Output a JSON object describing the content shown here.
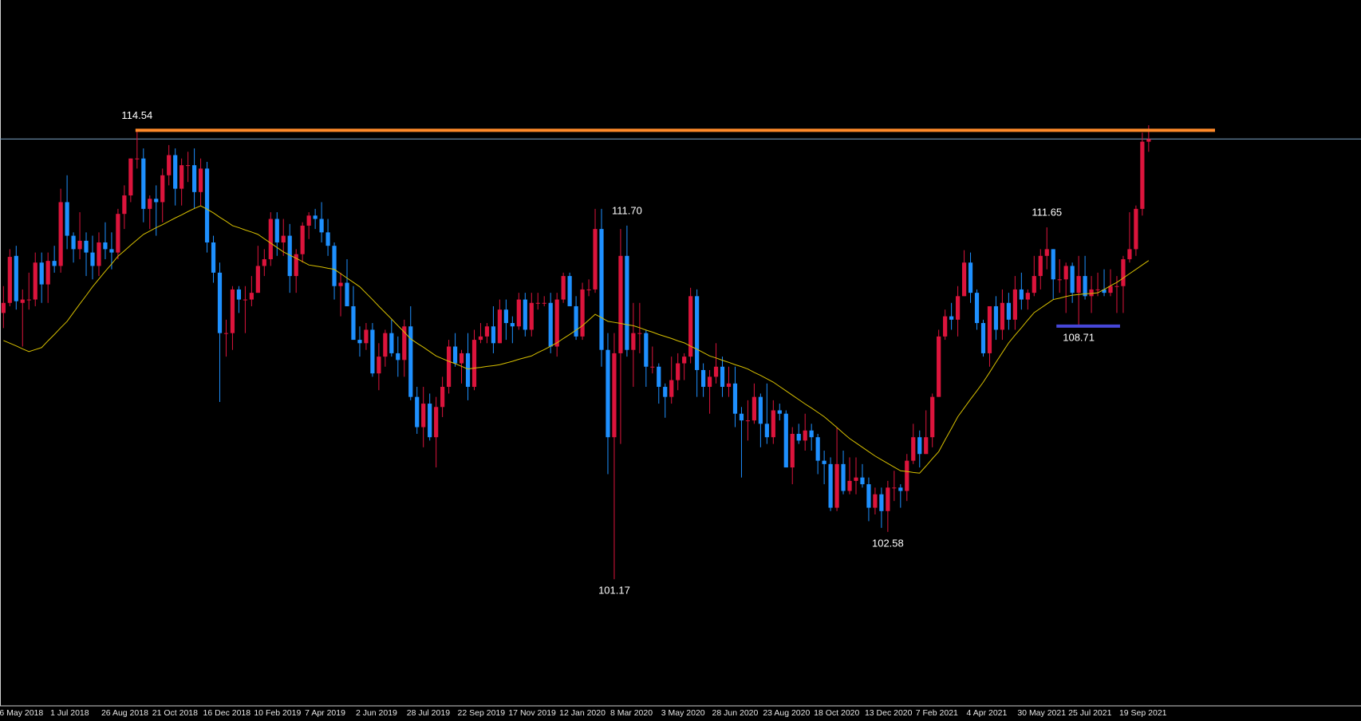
{
  "chart_data": {
    "type": "candlestick",
    "categories": [
      "6 May 2018",
      null,
      null,
      null,
      null,
      null,
      null,
      null,
      "1 Jul 2018",
      null,
      null,
      null,
      null,
      null,
      null,
      null,
      "26 Aug 2018",
      null,
      null,
      null,
      null,
      null,
      null,
      null,
      "21 Oct 2018",
      null,
      null,
      null,
      null,
      null,
      null,
      null,
      "16 Dec 2018",
      null,
      null,
      null,
      null,
      null,
      null,
      null,
      "10 Feb 2019",
      null,
      null,
      null,
      null,
      null,
      null,
      null,
      "7 Apr 2019",
      null,
      null,
      null,
      null,
      null,
      null,
      null,
      "2 Jun 2019",
      null,
      null,
      null,
      null,
      null,
      null,
      null,
      "28 Jul 2019",
      null,
      null,
      null,
      null,
      null,
      null,
      null,
      "22 Sep 2019",
      null,
      null,
      null,
      null,
      null,
      null,
      null,
      "17 Nov 2019",
      null,
      null,
      null,
      null,
      null,
      null,
      null,
      "12 Jan 2020",
      null,
      null,
      null,
      null,
      null,
      null,
      null,
      "8 Mar 2020",
      null,
      null,
      null,
      null,
      null,
      null,
      null,
      "3 May 2020",
      null,
      null,
      null,
      null,
      null,
      null,
      null,
      "28 Jun 2020",
      null,
      null,
      null,
      null,
      null,
      null,
      null,
      "23 Aug 2020",
      null,
      null,
      null,
      null,
      null,
      null,
      null,
      "18 Oct 2020",
      null,
      null,
      null,
      null,
      null,
      null,
      null,
      "13 Dec 2020",
      null,
      null,
      null,
      null,
      null,
      null,
      null,
      "7 Feb 2021",
      null,
      null,
      null,
      null,
      null,
      null,
      null,
      "4 Apr 2021",
      null,
      null,
      null,
      null,
      null,
      null,
      null,
      "30 May 2021",
      null,
      null,
      null,
      null,
      null,
      null,
      null,
      "25 Jul 2021",
      null,
      null,
      null,
      null,
      null,
      null,
      null,
      "19 Sep 2021",
      null,
      null,
      null,
      null
    ],
    "open": [
      109.1,
      109.4,
      110.8,
      109.4,
      109.5,
      109.5,
      110.6,
      109.95,
      110.65,
      110.5,
      112.4,
      111.4,
      111.0,
      111.25,
      110.9,
      110.5,
      111.2,
      111.0,
      110.9,
      112.05,
      112.6,
      113.7,
      113.7,
      112.2,
      112.5,
      112.4,
      113.2,
      113.8,
      112.8,
      113.5,
      113.5,
      112.7,
      113.4,
      111.2,
      110.3,
      108.5,
      108.5,
      109.8,
      109.5,
      109.5,
      109.7,
      110.5,
      110.7,
      111.9,
      111.2,
      111.4,
      110.2,
      110.85,
      111.7,
      112.0,
      111.9,
      111.5,
      111.1,
      109.9,
      110.0,
      109.3,
      108.3,
      108.2,
      108.6,
      107.3,
      107.8,
      108.5,
      107.9,
      107.7,
      108.7,
      106.6,
      105.7,
      106.4,
      105.4,
      106.3,
      106.9,
      108.1,
      107.6,
      107.9,
      106.9,
      108.3,
      108.4,
      108.7,
      108.2,
      109.2,
      108.8,
      108.7,
      109.5,
      108.6,
      109.4,
      109.4,
      109.4,
      108.1,
      109.5,
      110.2,
      109.3,
      108.4,
      109.8,
      109.8,
      111.6,
      108.0,
      105.4,
      107.9,
      110.8,
      108.0,
      108.5,
      108.5,
      107.5,
      107.5,
      106.9,
      106.6,
      107.1,
      107.6,
      107.8,
      109.6,
      107.4,
      106.9,
      107.2,
      107.5,
      106.9,
      107.0,
      106.1,
      105.9,
      105.9,
      106.6,
      105.8,
      105.4,
      106.2,
      106.1,
      104.5,
      105.5,
      105.3,
      105.6,
      105.4,
      104.7,
      104.6,
      103.3,
      104.6,
      103.8,
      104.1,
      104.2,
      104.0,
      103.3,
      103.7,
      103.2,
      103.9,
      103.9,
      103.8,
      104.7,
      105.4,
      104.9,
      105.4,
      106.6,
      108.4,
      109.0,
      108.9,
      109.6,
      110.6,
      109.7,
      108.8,
      107.9,
      109.3,
      108.6,
      109.4,
      108.9,
      109.8,
      109.5,
      109.7,
      110.2,
      110.8,
      111.0,
      110.1,
      110.1,
      110.5,
      109.7,
      110.2,
      109.6,
      109.8,
      109.8,
      109.7,
      109.9,
      109.9,
      110.7,
      111.0,
      112.2,
      114.2
    ],
    "high": [
      109.9,
      111.0,
      111.1,
      109.8,
      110.3,
      110.9,
      110.9,
      110.9,
      111.1,
      112.8,
      113.2,
      111.5,
      112.1,
      111.5,
      111.4,
      111.5,
      111.8,
      111.5,
      112.2,
      112.9,
      113.7,
      114.54,
      114.0,
      112.6,
      112.9,
      113.4,
      114.1,
      114.0,
      113.7,
      113.9,
      114.0,
      113.7,
      113.6,
      111.4,
      110.6,
      108.9,
      109.9,
      109.9,
      109.9,
      110.2,
      111.1,
      111.0,
      112.1,
      112.1,
      111.9,
      111.75,
      111.0,
      111.8,
      112.1,
      112.2,
      112.4,
      111.9,
      111.2,
      110.3,
      110.7,
      109.9,
      108.7,
      108.8,
      108.8,
      108.2,
      108.6,
      108.9,
      108.4,
      108.9,
      109.3,
      106.9,
      106.9,
      106.7,
      106.6,
      107.2,
      108.3,
      108.5,
      108.0,
      108.5,
      108.6,
      108.8,
      108.8,
      109.3,
      109.5,
      109.5,
      109.0,
      109.7,
      109.7,
      109.7,
      109.7,
      109.6,
      109.7,
      109.7,
      110.3,
      110.3,
      109.6,
      110.0,
      110.1,
      112.2,
      112.2,
      108.5,
      108.5,
      111.6,
      111.7,
      109.4,
      109.4,
      108.6,
      108.1,
      107.6,
      107.0,
      107.8,
      107.9,
      107.9,
      109.85,
      109.8,
      107.6,
      107.4,
      108.2,
      107.8,
      107.5,
      107.5,
      106.3,
      106.5,
      107.0,
      106.7,
      107.0,
      106.5,
      106.4,
      106.2,
      105.7,
      105.8,
      106.1,
      105.8,
      105.5,
      105.0,
      104.8,
      105.7,
      105.0,
      104.8,
      104.8,
      104.6,
      104.2,
      103.9,
      103.9,
      104.1,
      104.4,
      104.0,
      104.9,
      105.8,
      105.6,
      106.2,
      106.7,
      108.6,
      109.2,
      109.4,
      109.9,
      110.97,
      110.9,
      109.8,
      108.9,
      109.3,
      109.6,
      109.8,
      109.7,
      110.2,
      110.3,
      109.8,
      110.8,
      111.0,
      111.65,
      111.0,
      110.7,
      110.6,
      110.6,
      110.8,
      110.8,
      110.2,
      110.3,
      110.4,
      110.4,
      110.2,
      110.8,
      112.1,
      112.3,
      114.47,
      114.69
    ],
    "low": [
      108.65,
      109.3,
      109.2,
      108.1,
      109.2,
      109.3,
      109.4,
      109.4,
      110.3,
      110.3,
      111.0,
      110.6,
      110.7,
      110.2,
      110.1,
      110.2,
      110.7,
      110.4,
      110.7,
      111.6,
      112.4,
      113.4,
      111.8,
      111.6,
      111.4,
      111.8,
      112.9,
      112.3,
      112.3,
      113.0,
      112.2,
      112.3,
      110.9,
      110.0,
      106.45,
      107.8,
      108.0,
      109.1,
      108.5,
      109.3,
      109.7,
      110.2,
      110.5,
      110.8,
      110.8,
      109.7,
      109.7,
      110.6,
      111.3,
      111.6,
      111.2,
      110.8,
      109.5,
      109.0,
      109.3,
      108.3,
      107.8,
      108.0,
      107.2,
      106.8,
      107.5,
      107.8,
      107.2,
      107.2,
      106.5,
      105.5,
      105.1,
      105.3,
      104.5,
      106.0,
      106.7,
      107.5,
      107.0,
      106.5,
      106.8,
      108.2,
      108.2,
      107.9,
      108.2,
      108.3,
      108.2,
      108.6,
      108.4,
      108.4,
      109.2,
      109.3,
      107.9,
      107.8,
      109.4,
      109.3,
      108.3,
      108.3,
      109.6,
      109.7,
      107.5,
      104.3,
      101.17,
      105.2,
      107.8,
      106.9,
      107.9,
      106.9,
      107.3,
      106.4,
      105.98,
      106.4,
      106.8,
      107.1,
      107.6,
      106.6,
      106.6,
      106.1,
      107.0,
      106.6,
      106.6,
      105.7,
      104.2,
      105.3,
      105.8,
      105.1,
      105.2,
      105.2,
      105.9,
      104.5,
      104.0,
      105.2,
      105.0,
      105.0,
      104.3,
      104.0,
      103.2,
      103.2,
      103.7,
      103.7,
      103.7,
      103.9,
      102.9,
      103.1,
      102.7,
      102.58,
      103.5,
      103.3,
      103.5,
      104.6,
      104.5,
      104.9,
      105.1,
      106.6,
      108.3,
      108.6,
      108.4,
      109.6,
      109.4,
      108.6,
      107.8,
      107.5,
      108.3,
      108.3,
      108.6,
      108.6,
      109.2,
      109.2,
      109.6,
      109.8,
      110.4,
      109.5,
      109.7,
      109.1,
      109.4,
      108.71,
      109.5,
      109.1,
      109.6,
      109.6,
      109.6,
      109.1,
      109.1,
      110.6,
      110.8,
      112.0,
      113.9
    ],
    "close": [
      109.4,
      110.77,
      109.45,
      109.5,
      109.5,
      110.6,
      109.95,
      110.65,
      110.5,
      112.4,
      111.4,
      111.0,
      111.25,
      110.9,
      110.5,
      111.2,
      111.0,
      110.9,
      112.05,
      112.6,
      113.7,
      113.7,
      112.2,
      112.5,
      112.4,
      113.2,
      113.8,
      112.8,
      113.5,
      113.5,
      112.7,
      113.4,
      111.2,
      110.3,
      108.5,
      108.5,
      109.8,
      109.5,
      109.5,
      109.7,
      110.5,
      110.7,
      111.9,
      111.2,
      111.4,
      110.2,
      110.85,
      111.7,
      112.0,
      111.9,
      111.5,
      111.1,
      109.9,
      110.0,
      109.3,
      108.3,
      108.2,
      108.6,
      107.3,
      107.8,
      108.5,
      107.9,
      107.7,
      108.7,
      106.6,
      105.7,
      106.4,
      105.4,
      106.3,
      106.9,
      108.1,
      107.6,
      107.9,
      106.9,
      108.3,
      108.4,
      108.7,
      108.2,
      109.2,
      108.8,
      108.7,
      109.5,
      108.6,
      109.4,
      109.4,
      109.4,
      108.1,
      109.5,
      110.2,
      109.3,
      108.4,
      109.8,
      109.8,
      111.6,
      108.0,
      105.4,
      107.9,
      110.8,
      108.0,
      108.5,
      108.5,
      107.5,
      107.5,
      106.9,
      106.6,
      107.1,
      107.6,
      107.8,
      109.6,
      107.4,
      106.9,
      107.2,
      107.5,
      106.9,
      107.0,
      106.1,
      105.9,
      105.9,
      106.6,
      105.8,
      105.4,
      106.2,
      106.1,
      104.5,
      105.5,
      105.3,
      105.6,
      105.4,
      104.7,
      104.6,
      103.3,
      104.6,
      103.8,
      104.1,
      104.2,
      104.0,
      103.3,
      103.7,
      103.2,
      103.9,
      103.9,
      103.8,
      104.7,
      105.4,
      104.9,
      105.4,
      106.6,
      108.4,
      109.0,
      108.9,
      109.6,
      110.6,
      109.7,
      108.8,
      107.9,
      109.3,
      108.6,
      109.4,
      108.9,
      109.8,
      109.5,
      109.7,
      110.2,
      110.8,
      111.0,
      110.1,
      110.1,
      110.5,
      109.7,
      110.2,
      109.6,
      109.8,
      109.8,
      109.7,
      109.9,
      109.9,
      110.7,
      111.0,
      112.2,
      114.2,
      114.28
    ],
    "up_color": "#dc143c",
    "down_color": "#1e90ff",
    "bid_line_color": "#7fa6c9",
    "moving_average": {
      "color": "#d8c000",
      "values": [
        108.28,
        108.2,
        108.12,
        108.03,
        107.95,
        108.01,
        108.07,
        108.27,
        108.46,
        108.66,
        108.85,
        109.11,
        109.37,
        109.62,
        109.88,
        110.11,
        110.34,
        110.56,
        110.79,
        110.95,
        111.12,
        111.28,
        111.44,
        111.54,
        111.64,
        111.73,
        111.83,
        111.93,
        112.02,
        112.12,
        112.21,
        112.29,
        112.19,
        112.08,
        111.95,
        111.83,
        111.7,
        111.64,
        111.57,
        111.51,
        111.44,
        111.31,
        111.18,
        111.05,
        110.92,
        110.82,
        110.73,
        110.63,
        110.53,
        110.5,
        110.47,
        110.43,
        110.4,
        110.27,
        110.14,
        110.01,
        109.88,
        109.69,
        109.5,
        109.3,
        109.11,
        108.92,
        108.72,
        108.53,
        108.33,
        108.2,
        108.08,
        107.95,
        107.82,
        107.74,
        107.66,
        107.59,
        107.51,
        107.43,
        107.46,
        107.48,
        107.51,
        107.53,
        107.56,
        107.61,
        107.66,
        107.72,
        107.77,
        107.82,
        107.92,
        108.01,
        108.11,
        108.21,
        108.34,
        108.46,
        108.59,
        108.72,
        108.89,
        109.06,
        108.96,
        108.85,
        108.82,
        108.79,
        108.75,
        108.72,
        108.66,
        108.59,
        108.53,
        108.46,
        108.4,
        108.34,
        108.27,
        108.21,
        108.11,
        108.02,
        107.92,
        107.82,
        107.76,
        107.69,
        107.63,
        107.56,
        107.5,
        107.43,
        107.33,
        107.24,
        107.14,
        107.04,
        106.91,
        106.78,
        106.65,
        106.52,
        106.39,
        106.27,
        106.14,
        106.01,
        105.85,
        105.69,
        105.52,
        105.36,
        105.23,
        105.1,
        104.97,
        104.84,
        104.73,
        104.62,
        104.51,
        104.4,
        104.38,
        104.35,
        104.33,
        104.54,
        104.76,
        104.97,
        105.32,
        105.66,
        106.01,
        106.27,
        106.53,
        106.78,
        107.04,
        107.33,
        107.63,
        107.92,
        108.21,
        108.44,
        108.66,
        108.89,
        109.11,
        109.24,
        109.37,
        109.5,
        109.54,
        109.59,
        109.63,
        109.65,
        109.67,
        109.68,
        109.7,
        109.8,
        109.91,
        110.01,
        110.14,
        110.27,
        110.4,
        110.53,
        110.66
      ]
    },
    "annotations": [
      {
        "value": 114.54,
        "line_color": "#ff8a2a"
      },
      {
        "value": 111.7,
        "label": "111.70"
      },
      {
        "value": 101.17
      },
      {
        "value": 102.58
      },
      {
        "value": 111.65
      },
      {
        "value": 108.71,
        "line_color": "#4747d8"
      }
    ],
    "ylim": [
      97.4,
      118.42
    ]
  }
}
